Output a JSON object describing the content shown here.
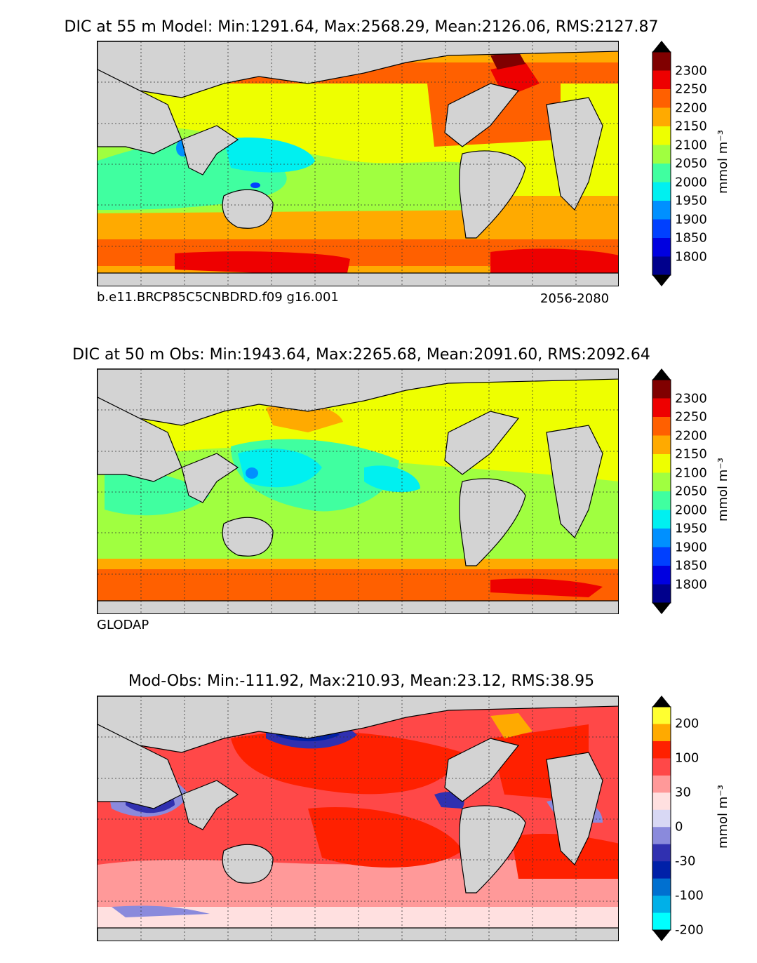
{
  "panels": [
    {
      "title": "DIC at 55 m Model: Min:1291.64, Max:2568.29, Mean:2126.06, RMS:2127.87",
      "footer_left": "b.e11.BRCP85C5CNBDRD.f09 g16.001",
      "footer_right": "2056-2080",
      "colorbar": {
        "ticks": [
          "2300",
          "2250",
          "2200",
          "2150",
          "2100",
          "2050",
          "2000",
          "1950",
          "1900",
          "1850",
          "1800"
        ],
        "unit": "mmol m⁻³",
        "colors": [
          "#800000",
          "#ee0000",
          "#ff6000",
          "#ffaa00",
          "#eeff00",
          "#a0ff40",
          "#40ffa0",
          "#00f0f0",
          "#0090ff",
          "#0040ff",
          "#0000e0",
          "#00008c"
        ]
      }
    },
    {
      "title": "DIC at 50 m Obs: Min:1943.64, Max:2265.68, Mean:2091.60, RMS:2092.64",
      "footer_left": "GLODAP",
      "footer_right": "",
      "colorbar": {
        "ticks": [
          "2300",
          "2250",
          "2200",
          "2150",
          "2100",
          "2050",
          "2000",
          "1950",
          "1900",
          "1850",
          "1800"
        ],
        "unit": "mmol m⁻³",
        "colors": [
          "#800000",
          "#ee0000",
          "#ff6000",
          "#ffaa00",
          "#eeff00",
          "#a0ff40",
          "#40ffa0",
          "#00f0f0",
          "#0090ff",
          "#0040ff",
          "#0000e0",
          "#00008c"
        ]
      }
    },
    {
      "title": "Mod-Obs: Min:-111.92, Max:210.93, Mean:23.12, RMS:38.95",
      "footer_left": "",
      "footer_right": "",
      "colorbar": {
        "ticks": [
          "200",
          "100",
          "30",
          "0",
          "-30",
          "-100",
          "-200"
        ],
        "unit": "mmol m⁻³",
        "colors": [
          "#ffff30",
          "#ffaa00",
          "#ff2000",
          "#ff4848",
          "#ff9999",
          "#ffe0e0",
          "#d8d8f4",
          "#8a8adc",
          "#3030b0",
          "#0020a8",
          "#0070d0",
          "#00b0e8",
          "#00ffff"
        ]
      }
    }
  ],
  "style": {
    "land": "#d3d3d3",
    "grid_lines": "dotted"
  }
}
